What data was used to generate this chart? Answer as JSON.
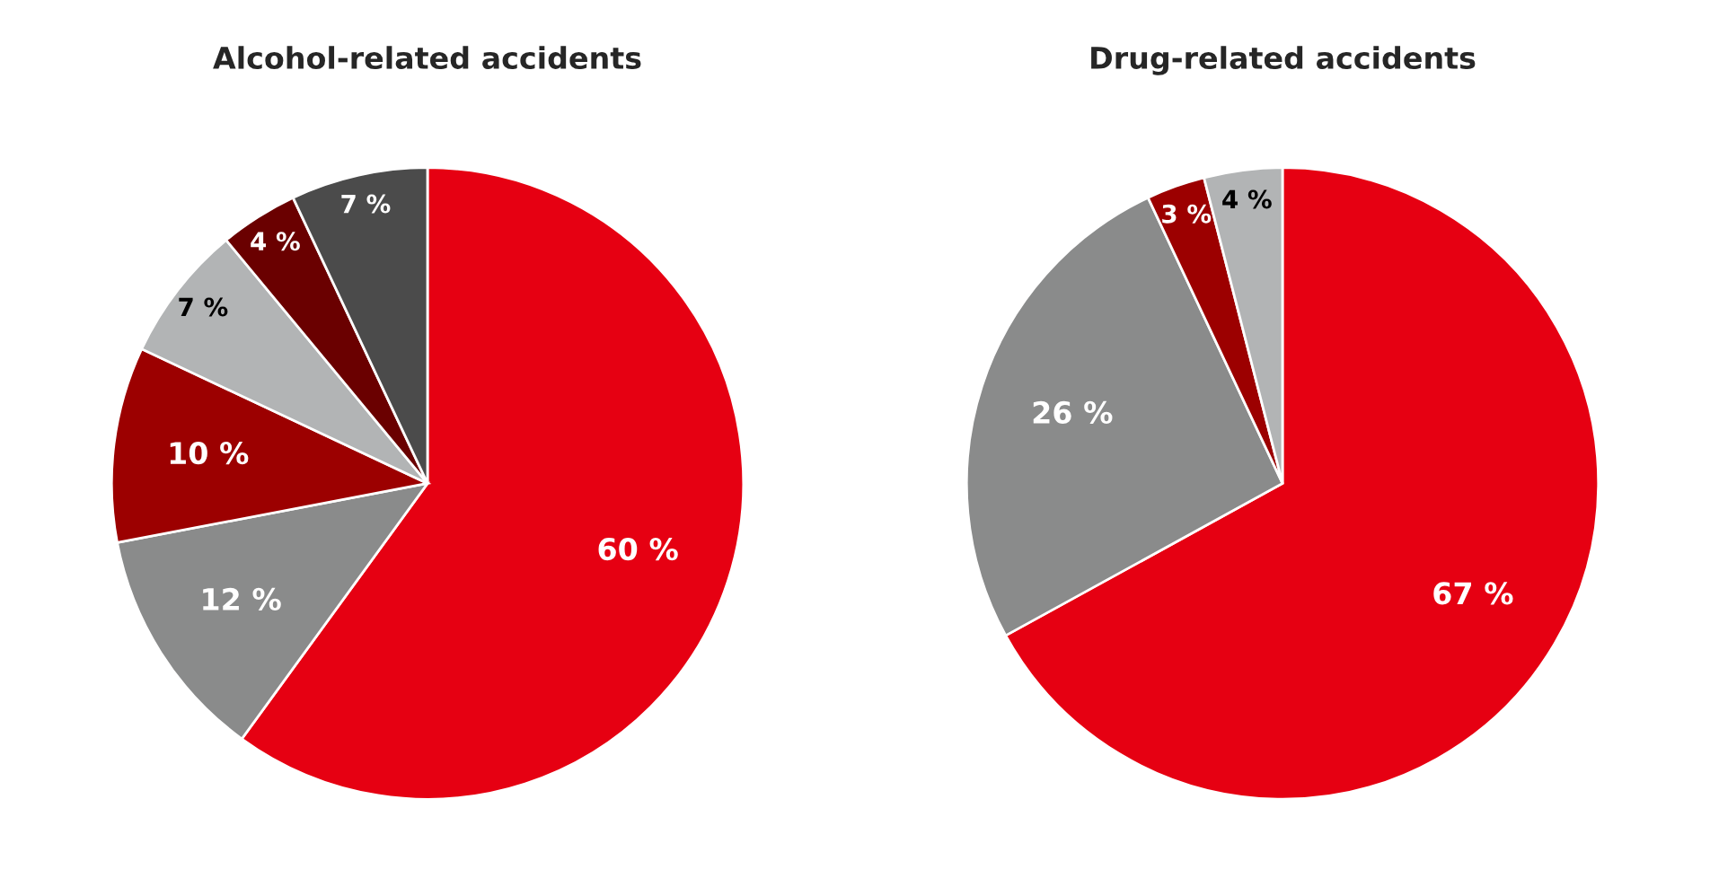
{
  "chart_data": [
    {
      "type": "pie",
      "title": "Alcohol-related accidents",
      "categories": [
        null,
        null,
        null,
        null,
        null,
        null
      ],
      "values": [
        60,
        12,
        10,
        7,
        4,
        7
      ],
      "colors": [
        "#e60012",
        "#8a8b8b",
        "#9c0000",
        "#b2b4b5",
        "#6a0000",
        "#4b4b4b"
      ],
      "value_labels": [
        "60 %",
        "12 %",
        "10 %",
        "7 %",
        "4 %",
        "7 %"
      ]
    },
    {
      "type": "pie",
      "title": "Drug-related accidents",
      "categories": [
        null,
        null,
        null,
        null
      ],
      "values": [
        67,
        26,
        3,
        4
      ],
      "colors": [
        "#e60012",
        "#8a8b8b",
        "#9c0000",
        "#b2b4b5"
      ],
      "value_labels": [
        "67 %",
        "26 %",
        "3 %",
        "4 %"
      ]
    }
  ]
}
